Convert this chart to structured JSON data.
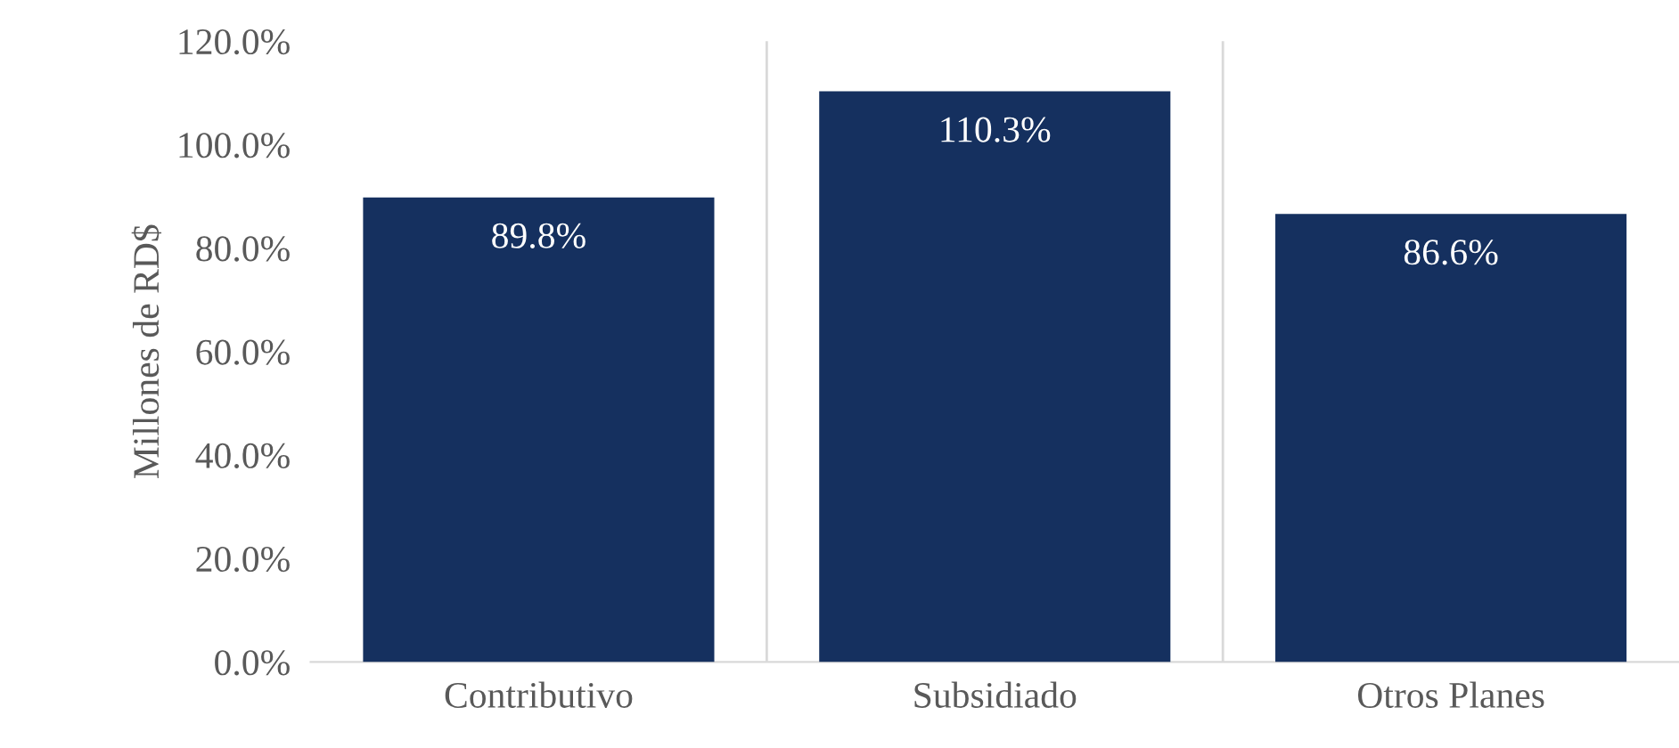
{
  "chart_data": {
    "type": "bar",
    "ylabel": "Millones de RD$",
    "categories": [
      "Contributivo",
      "Subsidiado",
      "Otros Planes"
    ],
    "values": [
      89.8,
      110.3,
      86.6
    ],
    "color": "#15305f",
    "value_labels": [
      "89.8%",
      "110.3%",
      "86.6%"
    ],
    "ylim": [
      0,
      120
    ],
    "yticks": [
      {
        "value": 0,
        "label": "0.0%"
      },
      {
        "value": 20,
        "label": "20.0%"
      },
      {
        "value": 40,
        "label": "40.0%"
      },
      {
        "value": 60,
        "label": "60.0%"
      },
      {
        "value": 80,
        "label": "80.0%"
      },
      {
        "value": 100,
        "label": "100.0%"
      },
      {
        "value": 120,
        "label": "120.0%"
      }
    ],
    "grid": "x",
    "legend": false
  }
}
